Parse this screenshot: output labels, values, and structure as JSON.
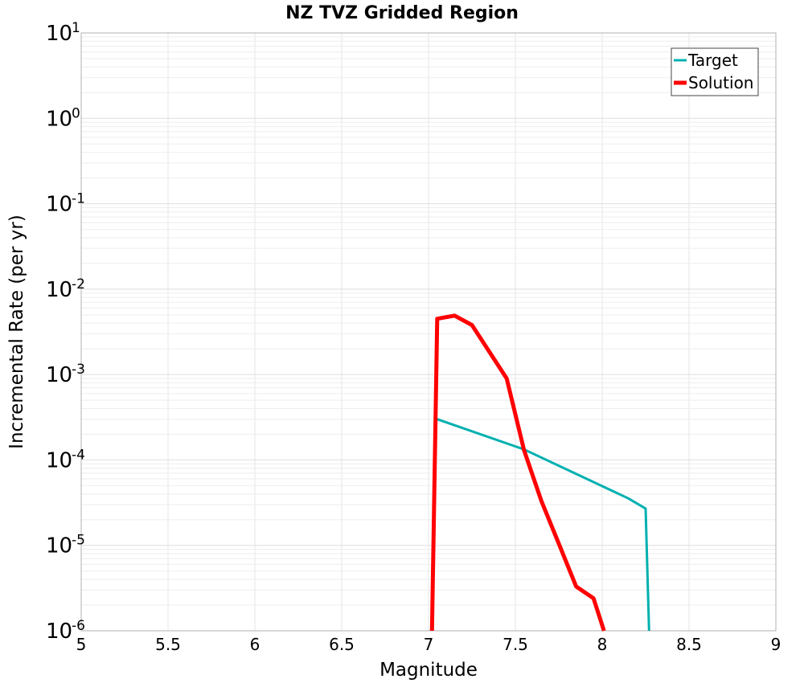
{
  "chart_data": {
    "type": "line",
    "title": "NZ TVZ Gridded Region",
    "xlabel": "Magnitude",
    "ylabel": "Incremental Rate (per yr)",
    "xlim": [
      5,
      9
    ],
    "ylim_log10": [
      -6,
      1
    ],
    "y_scale": "log",
    "x_ticks": [
      "5",
      "5.5",
      "6",
      "6.5",
      "7",
      "7.5",
      "8",
      "8.5",
      "9"
    ],
    "x_tick_values": [
      5,
      5.5,
      6,
      6.5,
      7,
      7.5,
      8,
      8.5,
      9
    ],
    "y_ticks": [
      {
        "base": "10",
        "exp": "1",
        "value": 1
      },
      {
        "base": "10",
        "exp": "0",
        "value": 0
      },
      {
        "base": "10",
        "exp": "-1",
        "value": -1
      },
      {
        "base": "10",
        "exp": "-2",
        "value": -2
      },
      {
        "base": "10",
        "exp": "-3",
        "value": -3
      },
      {
        "base": "10",
        "exp": "-4",
        "value": -4
      },
      {
        "base": "10",
        "exp": "-5",
        "value": -5
      },
      {
        "base": "10",
        "exp": "-6",
        "value": -6
      }
    ],
    "grid": true,
    "legend_position": "top-right",
    "series": [
      {
        "name": "Target",
        "color": "#00b0b0",
        "points": [
          [
            7.05,
            0.0003
          ],
          [
            7.55,
            0.000133
          ],
          [
            8.15,
            3.55e-05
          ],
          [
            8.25,
            2.7e-05
          ],
          [
            8.27,
            1e-06
          ]
        ]
      },
      {
        "name": "Solution",
        "color": "#ff0000",
        "points": [
          [
            7.02,
            1e-06
          ],
          [
            7.05,
            0.0045
          ],
          [
            7.15,
            0.0049
          ],
          [
            7.25,
            0.0038
          ],
          [
            7.45,
            0.0009
          ],
          [
            7.55,
            0.00013
          ],
          [
            7.65,
            3.3e-05
          ],
          [
            7.75,
            1.05e-05
          ],
          [
            7.85,
            3.3e-06
          ],
          [
            7.95,
            2.4e-06
          ],
          [
            8.01,
            1e-06
          ]
        ]
      }
    ]
  }
}
